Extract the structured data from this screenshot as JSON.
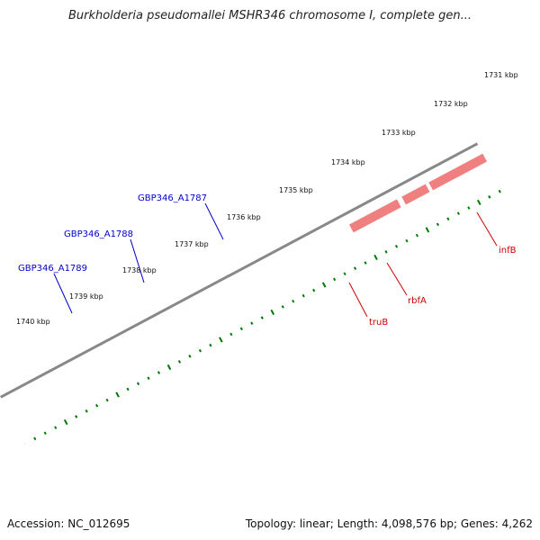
{
  "title": "Burkholderia pseudomallei MSHR346 chromosome I, complete gen...",
  "accession": "Accession: NC_012695",
  "summary": "Topology: linear; Length: 4,098,576 bp; Genes: 4,262",
  "kbp_ticks": [
    "1731 kbp",
    "1732 kbp",
    "1733 kbp",
    "1734 kbp",
    "1735 kbp",
    "1736 kbp",
    "1737 kbp",
    "1738 kbp",
    "1739 kbp",
    "1740 kbp"
  ],
  "gene_labels": {
    "a1787": "GBP346_A1787",
    "a1788": "GBP346_A1788",
    "a1789": "GBP346_A1789",
    "infB": "infB",
    "rbfA": "rbfA",
    "truB": "truB"
  },
  "colors": {
    "forward_blue": "#0000e6",
    "red": "#f00000",
    "pink": "#f08080",
    "teal": "#20e8a0",
    "olive": "#7a9a20",
    "lime": "#c8f060",
    "orange": "#ff8c00",
    "green": "#30c030",
    "label_blue": "#0000cc",
    "label_red": "#cc0000",
    "tick_green": "#007a00",
    "backbone": "#888888"
  }
}
